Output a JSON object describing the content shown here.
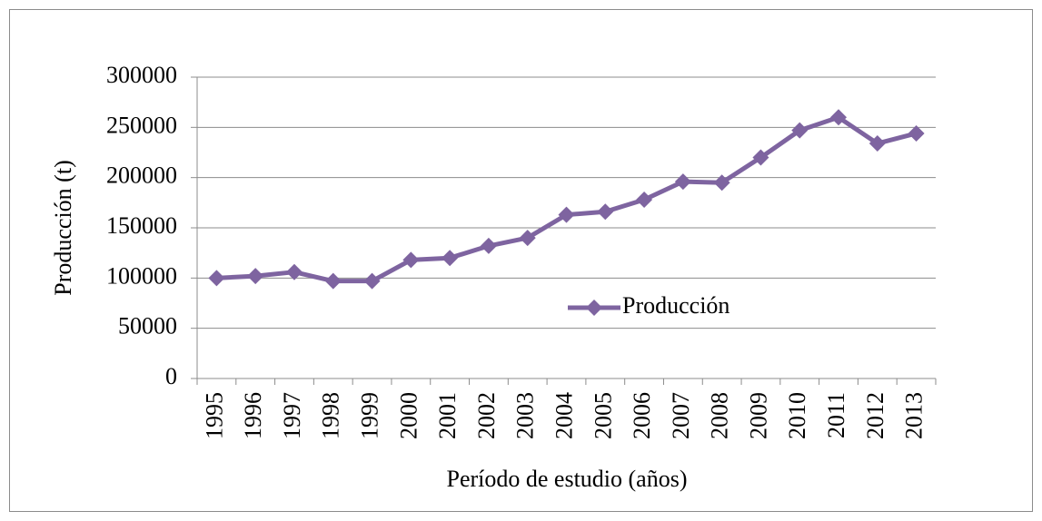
{
  "chart_data": {
    "type": "line",
    "xlabel": "Período de estudio (años)",
    "ylabel": "Producción (t)",
    "categories": [
      "1995",
      "1996",
      "1997",
      "1998",
      "1999",
      "2000",
      "2001",
      "2002",
      "2003",
      "2004",
      "2005",
      "2006",
      "2007",
      "2008",
      "2009",
      "2010",
      "2011",
      "2012",
      "2013"
    ],
    "series": [
      {
        "name": "Producción",
        "color": "#7e64a0",
        "values": [
          100000,
          102000,
          106000,
          97000,
          97000,
          118000,
          120000,
          132000,
          140000,
          163000,
          166000,
          178000,
          196000,
          195000,
          220000,
          247000,
          260000,
          234000,
          244000
        ]
      }
    ],
    "ylim": [
      0,
      300000
    ],
    "yticks": [
      0,
      50000,
      100000,
      150000,
      200000,
      250000,
      300000
    ],
    "grid": true,
    "legend": "center"
  }
}
